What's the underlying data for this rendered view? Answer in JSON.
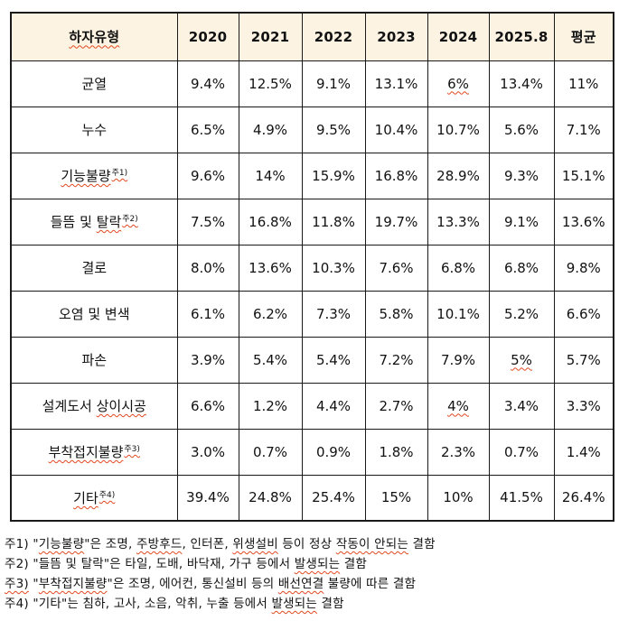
{
  "colors": {
    "header_bg": "#FCF3E3",
    "border_color": "#1A1A1A",
    "wavy_color": "#E2481F",
    "text_color": "#111111"
  },
  "table": {
    "header": {
      "col0": "하자유형",
      "col0_wavy": true,
      "years": [
        "2020",
        "2021",
        "2022",
        "2023",
        "2024",
        "2025.8",
        "평균"
      ]
    },
    "rows": [
      {
        "label": [
          {
            "t": "균열",
            "w": false
          }
        ],
        "sup": "",
        "sup_wavy": false,
        "values": [
          {
            "t": "9.4%",
            "w": false
          },
          {
            "t": "12.5%",
            "w": false
          },
          {
            "t": "9.1%",
            "w": false
          },
          {
            "t": "13.1%",
            "w": false
          },
          {
            "t": "6%",
            "w": true
          },
          {
            "t": "13.4%",
            "w": false
          },
          {
            "t": "11%",
            "w": false
          }
        ]
      },
      {
        "label": [
          {
            "t": "누수",
            "w": false
          }
        ],
        "sup": "",
        "sup_wavy": false,
        "values": [
          {
            "t": "6.5%",
            "w": false
          },
          {
            "t": "4.9%",
            "w": false
          },
          {
            "t": "9.5%",
            "w": false
          },
          {
            "t": "10.4%",
            "w": false
          },
          {
            "t": "10.7%",
            "w": false
          },
          {
            "t": "5.6%",
            "w": false
          },
          {
            "t": "7.1%",
            "w": false
          }
        ]
      },
      {
        "label": [
          {
            "t": "기능불량",
            "w": true
          }
        ],
        "sup": "주1)",
        "sup_wavy": true,
        "values": [
          {
            "t": "9.6%",
            "w": false
          },
          {
            "t": "14%",
            "w": false
          },
          {
            "t": "15.9%",
            "w": false
          },
          {
            "t": "16.8%",
            "w": false
          },
          {
            "t": "28.9%",
            "w": false
          },
          {
            "t": "9.3%",
            "w": false
          },
          {
            "t": "15.1%",
            "w": false
          }
        ]
      },
      {
        "label": [
          {
            "t": "들뜸 및 ",
            "w": false
          },
          {
            "t": "탈락",
            "w": true
          }
        ],
        "sup": "주2)",
        "sup_wavy": true,
        "values": [
          {
            "t": "7.5%",
            "w": false
          },
          {
            "t": "16.8%",
            "w": false
          },
          {
            "t": "11.8%",
            "w": false
          },
          {
            "t": "19.7%",
            "w": false
          },
          {
            "t": "13.3%",
            "w": false
          },
          {
            "t": "9.1%",
            "w": false
          },
          {
            "t": "13.6%",
            "w": false
          }
        ]
      },
      {
        "label": [
          {
            "t": "결로",
            "w": false
          }
        ],
        "sup": "",
        "sup_wavy": false,
        "values": [
          {
            "t": "8.0%",
            "w": false
          },
          {
            "t": "13.6%",
            "w": false
          },
          {
            "t": "10.3%",
            "w": false
          },
          {
            "t": "7.6%",
            "w": false
          },
          {
            "t": "6.8%",
            "w": false
          },
          {
            "t": "6.8%",
            "w": false
          },
          {
            "t": "9.8%",
            "w": false
          }
        ]
      },
      {
        "label": [
          {
            "t": "오염 및 변색",
            "w": false
          }
        ],
        "sup": "",
        "sup_wavy": false,
        "values": [
          {
            "t": "6.1%",
            "w": false
          },
          {
            "t": "6.2%",
            "w": false
          },
          {
            "t": "7.3%",
            "w": false
          },
          {
            "t": "5.8%",
            "w": false
          },
          {
            "t": "10.1%",
            "w": false
          },
          {
            "t": "5.2%",
            "w": false
          },
          {
            "t": "6.6%",
            "w": false
          }
        ]
      },
      {
        "label": [
          {
            "t": "파손",
            "w": false
          }
        ],
        "sup": "",
        "sup_wavy": false,
        "values": [
          {
            "t": "3.9%",
            "w": false
          },
          {
            "t": "5.4%",
            "w": false
          },
          {
            "t": "5.4%",
            "w": false
          },
          {
            "t": "7.2%",
            "w": false
          },
          {
            "t": "7.9%",
            "w": false
          },
          {
            "t": "5%",
            "w": true
          },
          {
            "t": "5.7%",
            "w": false
          }
        ]
      },
      {
        "label": [
          {
            "t": "설계도서 ",
            "w": false
          },
          {
            "t": "상이시공",
            "w": true
          }
        ],
        "sup": "",
        "sup_wavy": false,
        "values": [
          {
            "t": "6.6%",
            "w": false
          },
          {
            "t": "1.2%",
            "w": false
          },
          {
            "t": "4.4%",
            "w": false
          },
          {
            "t": "2.7%",
            "w": false
          },
          {
            "t": "4%",
            "w": true
          },
          {
            "t": "3.4%",
            "w": false
          },
          {
            "t": "3.3%",
            "w": false
          }
        ]
      },
      {
        "label": [
          {
            "t": "부착접지불량",
            "w": true
          }
        ],
        "sup": "주3)",
        "sup_wavy": true,
        "values": [
          {
            "t": "3.0%",
            "w": false
          },
          {
            "t": "0.7%",
            "w": false
          },
          {
            "t": "0.9%",
            "w": false
          },
          {
            "t": "1.8%",
            "w": false
          },
          {
            "t": "2.3%",
            "w": false
          },
          {
            "t": "0.7%",
            "w": false
          },
          {
            "t": "1.4%",
            "w": false
          }
        ]
      },
      {
        "label": [
          {
            "t": "기타",
            "w": true
          }
        ],
        "sup": "주4)",
        "sup_wavy": true,
        "values": [
          {
            "t": "39.4%",
            "w": false
          },
          {
            "t": "24.8%",
            "w": false
          },
          {
            "t": "25.4%",
            "w": false
          },
          {
            "t": "15%",
            "w": false
          },
          {
            "t": "10%",
            "w": false
          },
          {
            "t": "41.5%",
            "w": false
          },
          {
            "t": "26.4%",
            "w": false
          }
        ]
      }
    ]
  },
  "footnotes": [
    {
      "segments": [
        {
          "t": "주1) \"",
          "w": false
        },
        {
          "t": "기능불량",
          "w": true
        },
        {
          "t": "\"은 조명, ",
          "w": false
        },
        {
          "t": "주방후드",
          "w": true
        },
        {
          "t": ", 인터폰, ",
          "w": false
        },
        {
          "t": "위생설비",
          "w": true
        },
        {
          "t": " 등이 정상 ",
          "w": false
        },
        {
          "t": "작동이 안되는",
          "w": true
        },
        {
          "t": " 결함",
          "w": false
        }
      ]
    },
    {
      "segments": [
        {
          "t": "주2) \"들뜸 및 탈락\"은 타일, 도배, 바닥재, 가구 등에서 ",
          "w": false
        },
        {
          "t": "발생되는",
          "w": true
        },
        {
          "t": " 결함",
          "w": false
        }
      ]
    },
    {
      "segments": [
        {
          "t": "주3)",
          "w": true
        },
        {
          "t": " \"",
          "w": false
        },
        {
          "t": "부착접지불량",
          "w": true
        },
        {
          "t": "\"은 조명, 에어컨, 통신설비 등의 ",
          "w": false
        },
        {
          "t": "배선연결",
          "w": true
        },
        {
          "t": " 불량에 따른 결함",
          "w": false
        }
      ]
    },
    {
      "segments": [
        {
          "t": "주4) \"기타\"는 침하, 고사, 소음, 악취, 누출 등에서 ",
          "w": false
        },
        {
          "t": "발생되는",
          "w": true
        },
        {
          "t": " 결함",
          "w": false
        }
      ]
    }
  ]
}
